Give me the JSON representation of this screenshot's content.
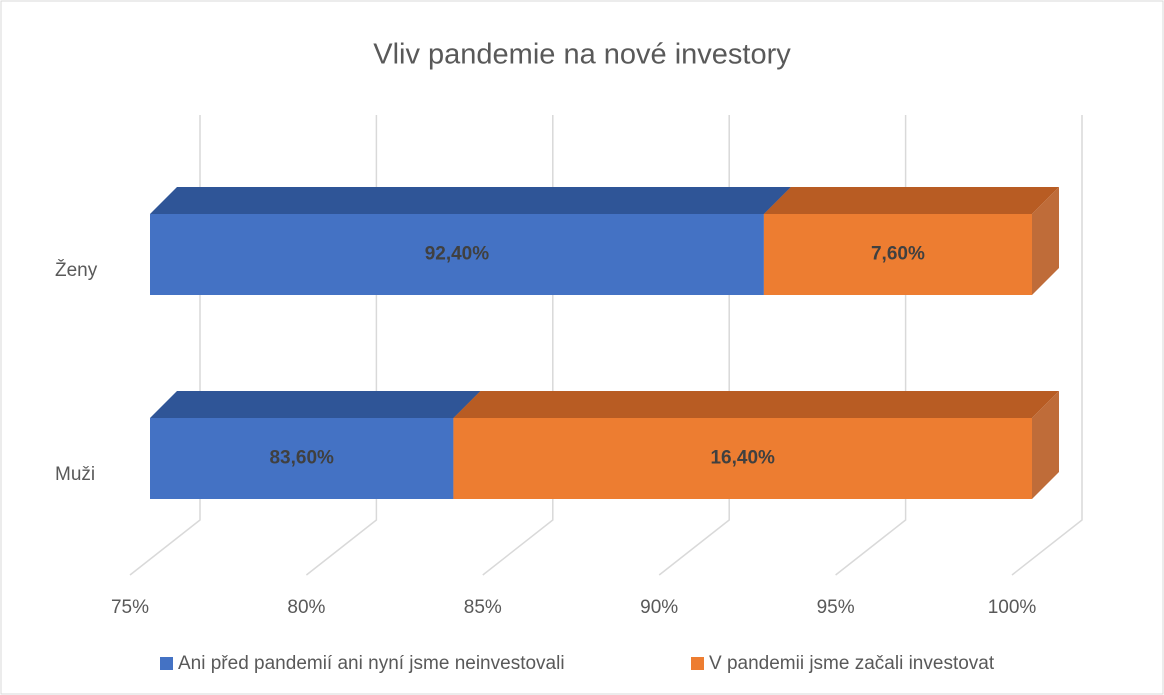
{
  "chart_data": {
    "type": "bar3d_stacked_horizontal",
    "title": "Vliv pandemie na nové investory",
    "categories": [
      "Ženy",
      "Muži"
    ],
    "series": [
      {
        "name": "Ani před pandemií ani nyní jsme neinvestovali",
        "color": "#4472c4",
        "top_color": "#2f5597",
        "values": [
          92.4,
          83.6
        ],
        "value_labels": [
          "92,40%",
          "83,60%"
        ]
      },
      {
        "name": "V pandemii jsme začali investovat",
        "color": "#ed7d31",
        "top_color": "#b85c23",
        "values": [
          7.6,
          16.4
        ],
        "value_labels": [
          "7,60%",
          "16,40%"
        ]
      }
    ],
    "xlim": [
      75,
      100
    ],
    "xticks": [
      {
        "value": 75,
        "label": "75%"
      },
      {
        "value": 80,
        "label": "80%"
      },
      {
        "value": 85,
        "label": "85%"
      },
      {
        "value": 90,
        "label": "90%"
      },
      {
        "value": 95,
        "label": "95%"
      },
      {
        "value": 100,
        "label": "100%"
      }
    ],
    "grid": true,
    "legend": "bottom"
  }
}
